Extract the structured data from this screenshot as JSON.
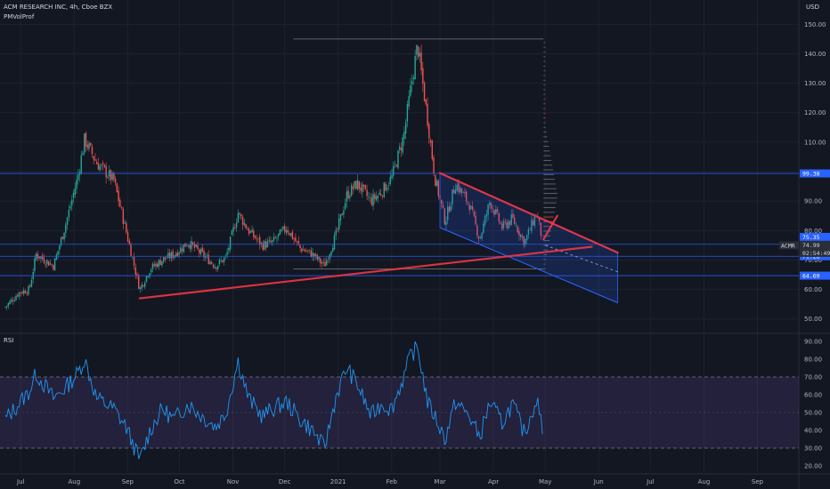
{
  "header": {
    "symbol_line": "ACM RESEARCH INC, 4h, Cboe BZX",
    "indicator": "PMVolProf",
    "currency": "USD",
    "rsi_label": "RSI"
  },
  "colors": {
    "background": "#131722",
    "grid": "#1e222d",
    "up": "#26a69a",
    "down": "#ef5350",
    "level_line": "#2962ff",
    "trendline": "#f23645",
    "channel_fill": "#2962ff",
    "rsi_line": "#2196f3",
    "rsi_band": "#7e57c2"
  },
  "chart_data": [
    {
      "type": "candlestick",
      "title": "ACM RESEARCH INC, 4h, Cboe BZX",
      "ylabel": "USD",
      "ylim": [
        46,
        151
      ],
      "y_ticks": [
        "50.00",
        "60.00",
        "70.00",
        "80.00",
        "90.00",
        "100.00",
        "110.00",
        "120.00",
        "130.00",
        "140.00",
        "150.00"
      ],
      "x_ticks": [
        "Jul",
        "Aug",
        "Sep",
        "Oct",
        "Nov",
        "Dec",
        "2021",
        "Feb",
        "Mar",
        "Apr",
        "May",
        "Jun",
        "Jul",
        "Aug",
        "Sep"
      ],
      "price_anchors": [
        [
          "2020-06-22",
          54
        ],
        [
          "2020-06-30",
          59
        ],
        [
          "2020-07-06",
          60
        ],
        [
          "2020-07-10",
          72
        ],
        [
          "2020-07-20",
          68
        ],
        [
          "2020-07-27",
          82
        ],
        [
          "2020-08-03",
          98
        ],
        [
          "2020-08-07",
          111
        ],
        [
          "2020-08-14",
          103
        ],
        [
          "2020-08-24",
          97
        ],
        [
          "2020-08-31",
          80
        ],
        [
          "2020-09-08",
          60
        ],
        [
          "2020-09-14",
          67
        ],
        [
          "2020-09-21",
          70
        ],
        [
          "2020-09-28",
          72
        ],
        [
          "2020-10-06",
          76
        ],
        [
          "2020-10-14",
          72
        ],
        [
          "2020-10-22",
          68
        ],
        [
          "2020-10-28",
          71
        ],
        [
          "2020-11-04",
          86
        ],
        [
          "2020-11-10",
          80
        ],
        [
          "2020-11-18",
          75
        ],
        [
          "2020-11-24",
          76
        ],
        [
          "2020-12-02",
          81
        ],
        [
          "2020-12-10",
          74
        ],
        [
          "2020-12-17",
          72
        ],
        [
          "2020-12-24",
          68
        ],
        [
          "2020-12-31",
          79
        ],
        [
          "2021-01-06",
          92
        ],
        [
          "2021-01-12",
          96
        ],
        [
          "2021-01-20",
          90
        ],
        [
          "2021-01-26",
          93
        ],
        [
          "2021-02-01",
          98
        ],
        [
          "2021-02-08",
          112
        ],
        [
          "2021-02-12",
          128
        ],
        [
          "2021-02-16",
          143
        ],
        [
          "2021-02-22",
          117
        ],
        [
          "2021-02-26",
          98
        ],
        [
          "2021-03-04",
          83
        ],
        [
          "2021-03-10",
          96
        ],
        [
          "2021-03-18",
          89
        ],
        [
          "2021-03-24",
          77
        ],
        [
          "2021-03-30",
          90
        ],
        [
          "2021-04-06",
          81
        ],
        [
          "2021-04-12",
          84
        ],
        [
          "2021-04-19",
          76
        ],
        [
          "2021-04-26",
          86
        ],
        [
          "2021-04-30",
          74.99
        ]
      ],
      "horizontal_levels": [
        99.38,
        75.35,
        71.28,
        64.69
      ],
      "range_lines": [
        145,
        67
      ],
      "price_tags": [
        {
          "text": "99.38",
          "kind": "level"
        },
        {
          "text": "75.35",
          "kind": "level"
        },
        {
          "text": "74.99",
          "kind": "last",
          "symbol": "ACMR"
        },
        {
          "text": "02:54:49",
          "kind": "countdown"
        },
        {
          "text": "71.28",
          "kind": "level"
        },
        {
          "text": "64.69",
          "kind": "level"
        }
      ],
      "trendlines": [
        {
          "from": [
            "2020-09-08",
            57
          ],
          "to": [
            "2021-05-28",
            74.5
          ]
        },
        {
          "from": [
            "2021-03-01",
            99.5
          ],
          "to": [
            "2021-06-12",
            72.5
          ]
        },
        {
          "from": [
            "2021-04-30",
            77
          ],
          "to": [
            "2021-05-08",
            85
          ]
        }
      ],
      "descending_channel": {
        "upper": {
          "from": [
            "2021-03-01",
            99.5
          ],
          "to": [
            "2021-06-12",
            72.5
          ]
        },
        "lower": {
          "from": [
            "2021-03-01",
            81
          ],
          "to": [
            "2021-06-12",
            55.5
          ]
        },
        "projection": {
          "from": [
            "2021-05-01",
            75
          ],
          "to": [
            "2021-06-12",
            66
          ]
        }
      }
    },
    {
      "type": "line",
      "title": "RSI",
      "ylim": [
        17,
        93
      ],
      "y_ticks": [
        "20.00",
        "30.00",
        "40.00",
        "50.00",
        "60.00",
        "70.00",
        "80.00",
        "90.00"
      ],
      "band": [
        30,
        70
      ],
      "rsi_anchors": [
        [
          "2020-06-22",
          46
        ],
        [
          "2020-06-30",
          55
        ],
        [
          "2020-07-06",
          62
        ],
        [
          "2020-07-10",
          72
        ],
        [
          "2020-07-20",
          58
        ],
        [
          "2020-07-27",
          64
        ],
        [
          "2020-08-03",
          72
        ],
        [
          "2020-08-07",
          80
        ],
        [
          "2020-08-14",
          58
        ],
        [
          "2020-08-24",
          52
        ],
        [
          "2020-08-31",
          42
        ],
        [
          "2020-09-08",
          23
        ],
        [
          "2020-09-14",
          40
        ],
        [
          "2020-09-21",
          52
        ],
        [
          "2020-09-28",
          46
        ],
        [
          "2020-10-06",
          55
        ],
        [
          "2020-10-14",
          48
        ],
        [
          "2020-10-22",
          42
        ],
        [
          "2020-10-28",
          50
        ],
        [
          "2020-11-04",
          79
        ],
        [
          "2020-11-10",
          58
        ],
        [
          "2020-11-18",
          48
        ],
        [
          "2020-11-24",
          52
        ],
        [
          "2020-12-02",
          56
        ],
        [
          "2020-12-10",
          46
        ],
        [
          "2020-12-17",
          40
        ],
        [
          "2020-12-24",
          30
        ],
        [
          "2020-12-31",
          60
        ],
        [
          "2021-01-06",
          75
        ],
        [
          "2021-01-12",
          66
        ],
        [
          "2021-01-20",
          48
        ],
        [
          "2021-01-26",
          55
        ],
        [
          "2021-02-01",
          52
        ],
        [
          "2021-02-08",
          70
        ],
        [
          "2021-02-12",
          82
        ],
        [
          "2021-02-16",
          87
        ],
        [
          "2021-02-22",
          55
        ],
        [
          "2021-02-26",
          48
        ],
        [
          "2021-03-04",
          35
        ],
        [
          "2021-03-10",
          56
        ],
        [
          "2021-03-18",
          48
        ],
        [
          "2021-03-24",
          36
        ],
        [
          "2021-03-30",
          56
        ],
        [
          "2021-04-06",
          44
        ],
        [
          "2021-04-12",
          55
        ],
        [
          "2021-04-19",
          38
        ],
        [
          "2021-04-26",
          58
        ],
        [
          "2021-04-30",
          37
        ]
      ]
    }
  ]
}
